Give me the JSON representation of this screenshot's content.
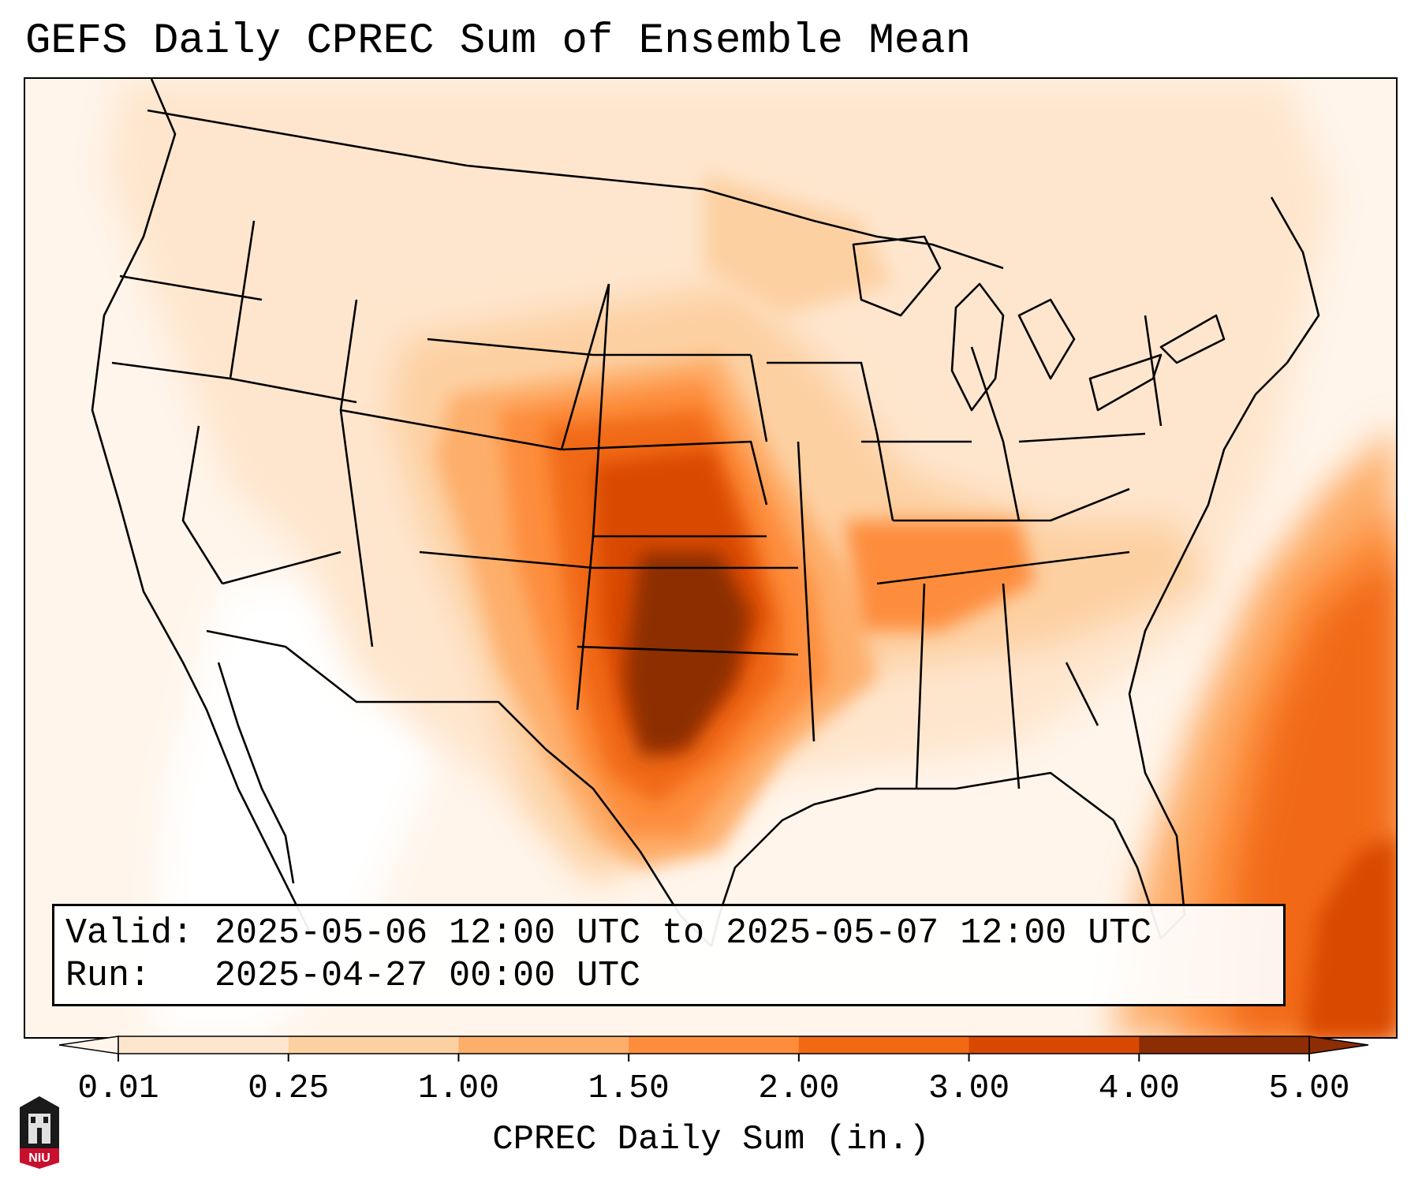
{
  "title": "GEFS Daily CPREC Sum of Ensemble Mean",
  "info": {
    "valid_label": "Valid:",
    "valid_value": "2025-05-06 12:00 UTC to 2025-05-07 12:00 UTC",
    "run_label": "Run:",
    "run_value": "2025-04-27 00:00 UTC"
  },
  "colorbar": {
    "label": "CPREC Daily Sum (in.)",
    "ticks": [
      "0.01",
      "0.25",
      "1.00",
      "1.50",
      "2.00",
      "3.00",
      "4.00",
      "5.00"
    ],
    "colors": [
      "#fff5eb",
      "#fee6ce",
      "#fdd0a2",
      "#fdae6b",
      "#fd8d3c",
      "#f16913",
      "#d94801",
      "#8c2d04"
    ],
    "extend": "both"
  },
  "logo": {
    "text": "NIU",
    "colors": [
      "#c8102e",
      "#000000"
    ]
  },
  "map": {
    "projection": "Lambert conformal (CONUS)",
    "features": [
      "coastlines",
      "state borders",
      "country borders",
      "great lakes"
    ],
    "precip_max_region": "central Oklahoma / north Texas",
    "colors": {
      "border": "#000000",
      "ocean_light": "#fff5eb"
    }
  }
}
